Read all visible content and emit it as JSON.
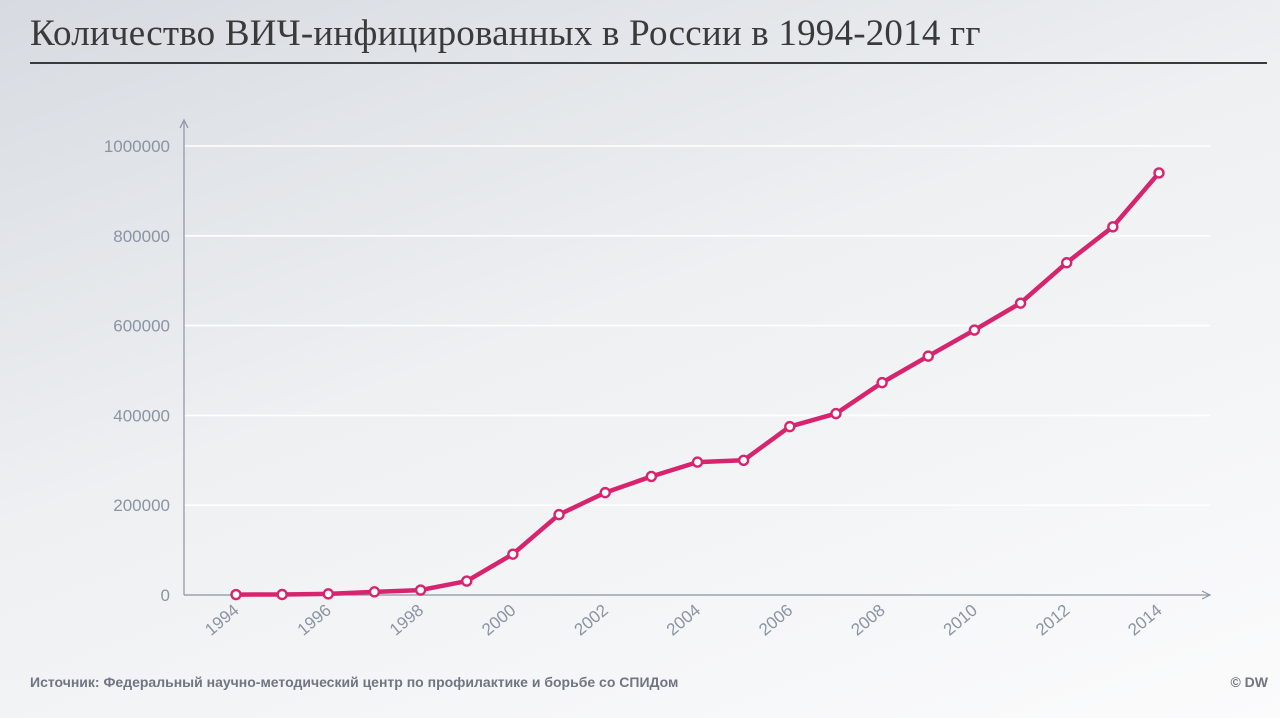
{
  "chart_data": {
    "type": "line",
    "title": "Количество ВИЧ-инфицированных в России в 1994-2014 гг",
    "xlabel": "",
    "ylabel": "",
    "x": [
      1994,
      1995,
      1996,
      1997,
      1998,
      1999,
      2000,
      2001,
      2002,
      2003,
      2004,
      2005,
      2006,
      2007,
      2008,
      2009,
      2010,
      2011,
      2012,
      2013,
      2014
    ],
    "y": [
      1000,
      1100,
      2500,
      7000,
      11000,
      31000,
      91000,
      179000,
      228000,
      264000,
      296000,
      300000,
      375000,
      404000,
      473000,
      532000,
      590000,
      650000,
      740000,
      820000,
      940000
    ],
    "x_tick_labels": [
      "1994",
      "1996",
      "1998",
      "2000",
      "2002",
      "2004",
      "2006",
      "2008",
      "2010",
      "2012",
      "2014"
    ],
    "y_tick_labels": [
      "0",
      "200000",
      "400000",
      "600000",
      "800000",
      "1000000"
    ],
    "ylim": [
      0,
      1000000
    ],
    "grid": "horizontal",
    "line_color": "#d6246e"
  },
  "source": "Источник: Федеральный научно-методический центр по профилактике и борьбе со СПИДом",
  "copyright": "© DW"
}
